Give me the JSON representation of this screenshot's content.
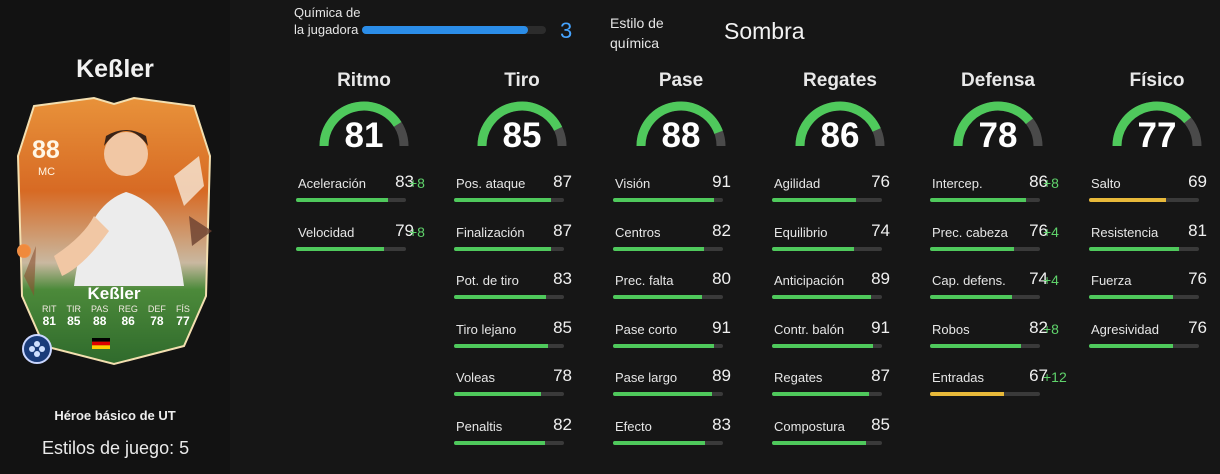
{
  "player": {
    "name": "Keßler",
    "card": {
      "rating": "88",
      "position": "MC",
      "name": "Keßler",
      "stats": [
        {
          "label": "RIT",
          "value": "81"
        },
        {
          "label": "TIR",
          "value": "85"
        },
        {
          "label": "PAS",
          "value": "88"
        },
        {
          "label": "REG",
          "value": "86"
        },
        {
          "label": "DEF",
          "value": "78"
        },
        {
          "label": "FÍS",
          "value": "77"
        }
      ]
    },
    "rarity": "Héroe básico de UT",
    "playstyles": "Estilos de juego: 5"
  },
  "chemistry": {
    "label": "Química de la jugadora",
    "value": "3",
    "fraction": 0.9,
    "style_label": "Estilo de química",
    "style_value": "Sombra"
  },
  "colors": {
    "stat_green": "#4fc95c",
    "stat_yellow": "#e8b93a",
    "chem_blue": "#2b8de8",
    "bonus_green": "#5fd36b"
  },
  "groups": [
    {
      "title": "Ritmo",
      "value": "81",
      "stats": [
        {
          "name": "Aceleración",
          "value": "83",
          "bonus": "+8"
        },
        {
          "name": "Velocidad",
          "value": "79",
          "bonus": "+8"
        }
      ]
    },
    {
      "title": "Tiro",
      "value": "85",
      "stats": [
        {
          "name": "Pos. ataque",
          "value": "87",
          "bonus": ""
        },
        {
          "name": "Finalización",
          "value": "87",
          "bonus": ""
        },
        {
          "name": "Pot. de tiro",
          "value": "83",
          "bonus": ""
        },
        {
          "name": "Tiro lejano",
          "value": "85",
          "bonus": ""
        },
        {
          "name": "Voleas",
          "value": "78",
          "bonus": ""
        },
        {
          "name": "Penaltis",
          "value": "82",
          "bonus": ""
        }
      ]
    },
    {
      "title": "Pase",
      "value": "88",
      "stats": [
        {
          "name": "Visión",
          "value": "91",
          "bonus": ""
        },
        {
          "name": "Centros",
          "value": "82",
          "bonus": ""
        },
        {
          "name": "Prec. falta",
          "value": "80",
          "bonus": ""
        },
        {
          "name": "Pase corto",
          "value": "91",
          "bonus": ""
        },
        {
          "name": "Pase largo",
          "value": "89",
          "bonus": ""
        },
        {
          "name": "Efecto",
          "value": "83",
          "bonus": ""
        }
      ]
    },
    {
      "title": "Regates",
      "value": "86",
      "stats": [
        {
          "name": "Agilidad",
          "value": "76",
          "bonus": ""
        },
        {
          "name": "Equilibrio",
          "value": "74",
          "bonus": ""
        },
        {
          "name": "Anticipación",
          "value": "89",
          "bonus": ""
        },
        {
          "name": "Contr. balón",
          "value": "91",
          "bonus": ""
        },
        {
          "name": "Regates",
          "value": "87",
          "bonus": ""
        },
        {
          "name": "Compostura",
          "value": "85",
          "bonus": ""
        }
      ]
    },
    {
      "title": "Defensa",
      "value": "78",
      "stats": [
        {
          "name": "Intercep.",
          "value": "86",
          "bonus": "+8"
        },
        {
          "name": "Prec. cabeza",
          "value": "76",
          "bonus": "+4"
        },
        {
          "name": "Cap. defens.",
          "value": "74",
          "bonus": "+4"
        },
        {
          "name": "Robos",
          "value": "82",
          "bonus": "+8"
        },
        {
          "name": "Entradas",
          "value": "67",
          "bonus": "+12"
        }
      ]
    },
    {
      "title": "Físico",
      "value": "77",
      "stats": [
        {
          "name": "Salto",
          "value": "69",
          "bonus": ""
        },
        {
          "name": "Resistencia",
          "value": "81",
          "bonus": ""
        },
        {
          "name": "Fuerza",
          "value": "76",
          "bonus": ""
        },
        {
          "name": "Agresividad",
          "value": "76",
          "bonus": ""
        }
      ]
    }
  ]
}
